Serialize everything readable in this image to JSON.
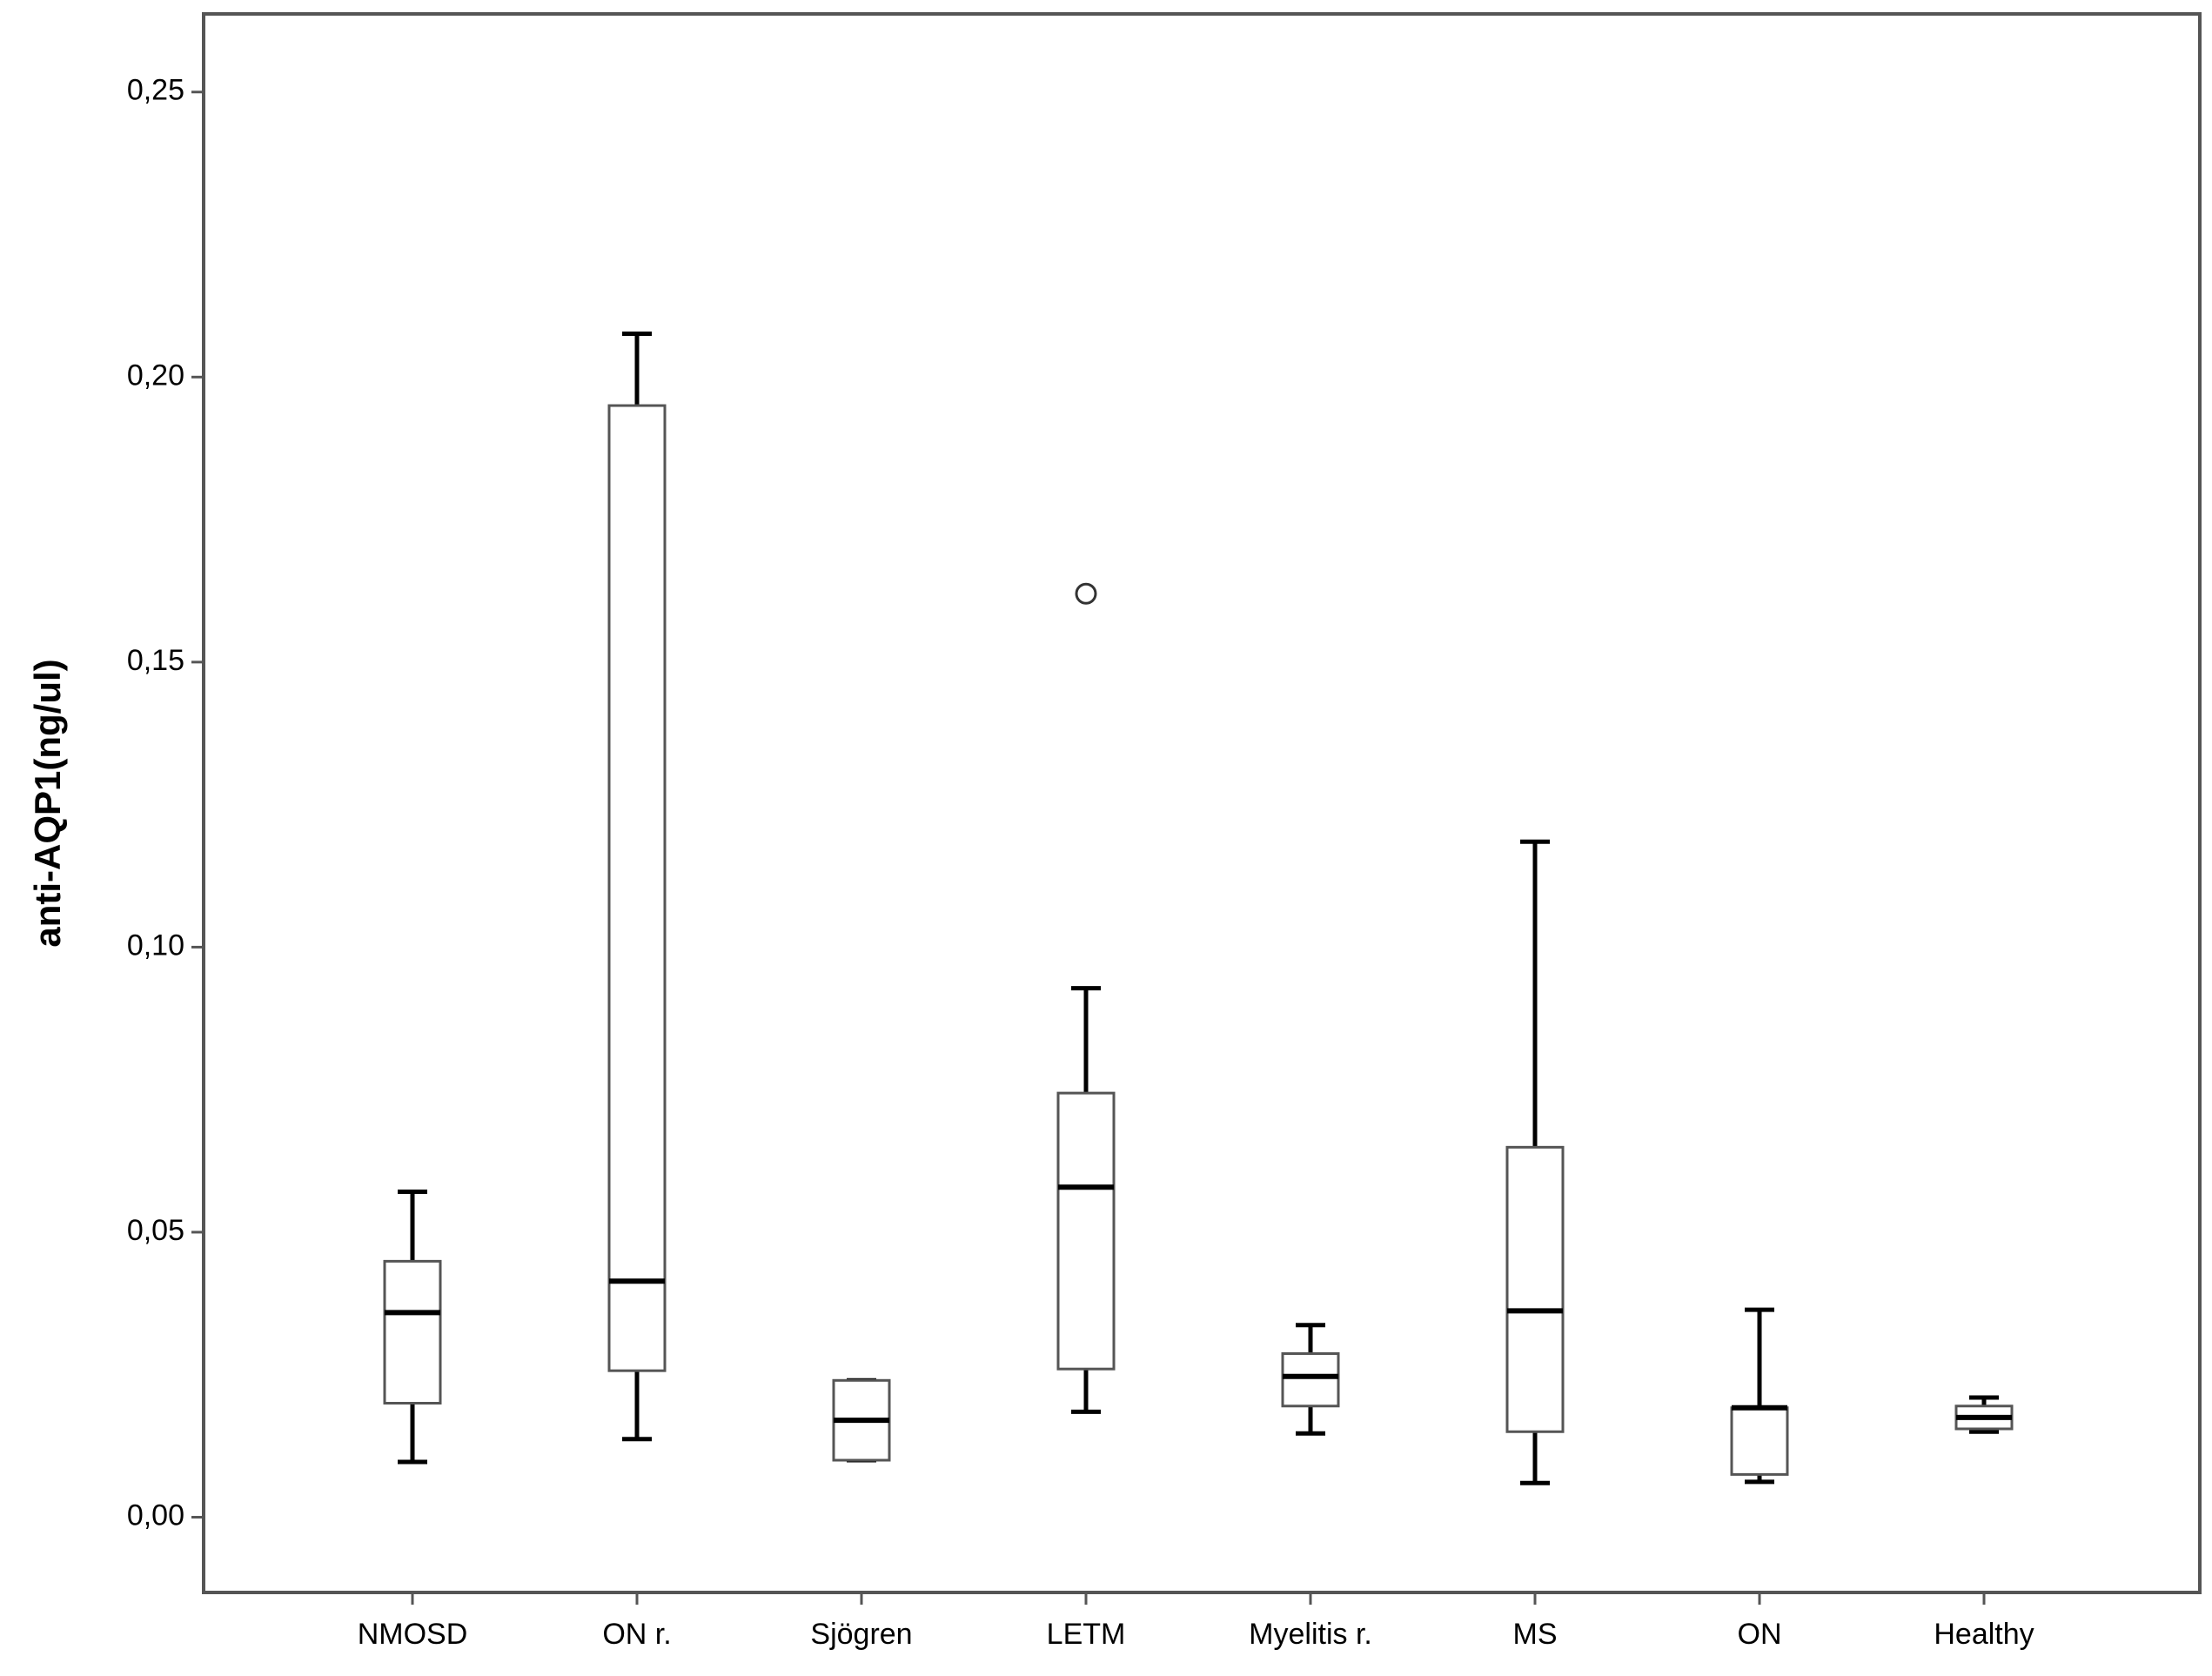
{
  "chart_data": {
    "type": "box",
    "y_label": "anti-AQP1(ng/ul)",
    "categories": [
      "NMOSD",
      "ON r.",
      "Sjögren",
      "LETM",
      "Myelitis r.",
      "MS",
      "ON",
      "Healthy"
    ],
    "min": [
      0.0097,
      0.0137,
      0.01,
      0.0185,
      0.0147,
      0.006,
      0.0062,
      0.015
    ],
    "q1": [
      0.02,
      0.0257,
      0.01,
      0.026,
      0.0195,
      0.015,
      0.0075,
      0.0155
    ],
    "median": [
      0.0359,
      0.0414,
      0.017,
      0.0579,
      0.0247,
      0.0362,
      0.0192,
      0.0175
    ],
    "q3": [
      0.0449,
      0.195,
      0.024,
      0.0744,
      0.0287,
      0.0649,
      0.0192,
      0.0195
    ],
    "max": [
      0.0571,
      0.2076,
      0.024,
      0.0928,
      0.0337,
      0.1185,
      0.0364,
      0.021
    ],
    "outliers": [
      [],
      [],
      [],
      [
        0.162
      ],
      [],
      [],
      [],
      []
    ],
    "ylim": [
      -0.0132,
      0.2637
    ],
    "yticks": [
      {
        "value": 0,
        "label": "0,00"
      },
      {
        "value": 0.05,
        "label": "0,05"
      },
      {
        "value": 0.1,
        "label": "0,10"
      },
      {
        "value": 0.15,
        "label": "0,15"
      },
      {
        "value": 0.2,
        "label": "0,20"
      },
      {
        "value": 0.25,
        "label": "0,25"
      }
    ],
    "box_color": "#ffffff",
    "line_color": "#000000"
  }
}
